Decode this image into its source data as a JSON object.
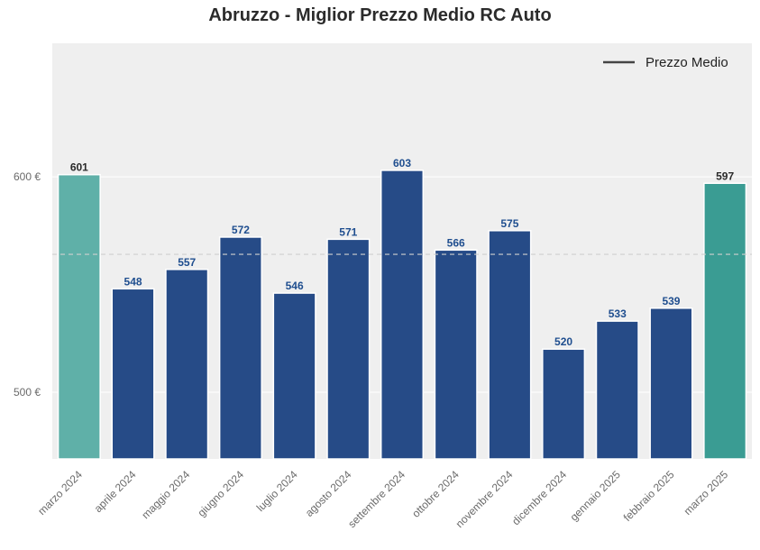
{
  "chart_data": {
    "type": "bar",
    "title": "Abruzzo - Miglior Prezzo Medio RC Auto",
    "categories": [
      "marzo 2024",
      "aprile 2024",
      "maggio 2024",
      "giugno 2024",
      "luglio 2024",
      "agosto 2024",
      "settembre 2024",
      "ottobre 2024",
      "novembre 2024",
      "dicembre 2024",
      "gennaio 2025",
      "febbraio 2025",
      "marzo 2025"
    ],
    "values": [
      601,
      548,
      557,
      572,
      546,
      571,
      603,
      566,
      575,
      520,
      533,
      539,
      597
    ],
    "value_labels": [
      "601",
      "548",
      "557",
      "572",
      "546",
      "571",
      "603",
      "566",
      "575",
      "520",
      "533",
      "539",
      "597"
    ],
    "bar_colors": [
      "#5fb0a8",
      "#264b87",
      "#264b87",
      "#264b87",
      "#264b87",
      "#264b87",
      "#264b87",
      "#264b87",
      "#264b87",
      "#264b87",
      "#264b87",
      "#264b87",
      "#3a9c93"
    ],
    "label_colors": [
      "#2b2b2b",
      "#1f4e8f",
      "#1f4e8f",
      "#1f4e8f",
      "#1f4e8f",
      "#1f4e8f",
      "#1f4e8f",
      "#1f4e8f",
      "#1f4e8f",
      "#1f4e8f",
      "#1f4e8f",
      "#1f4e8f",
      "#2b2b2b"
    ],
    "mean_line": {
      "value": 564
    },
    "y_ticks": [
      500,
      600
    ],
    "y_tick_labels": [
      "500 €",
      "600 €"
    ],
    "ylim": [
      469,
      662
    ],
    "xlabel": "",
    "ylabel": "",
    "grid": true,
    "legend": {
      "position": "top-right",
      "entries": [
        "Prezzo Medio"
      ]
    },
    "background_color": "#efefef"
  }
}
